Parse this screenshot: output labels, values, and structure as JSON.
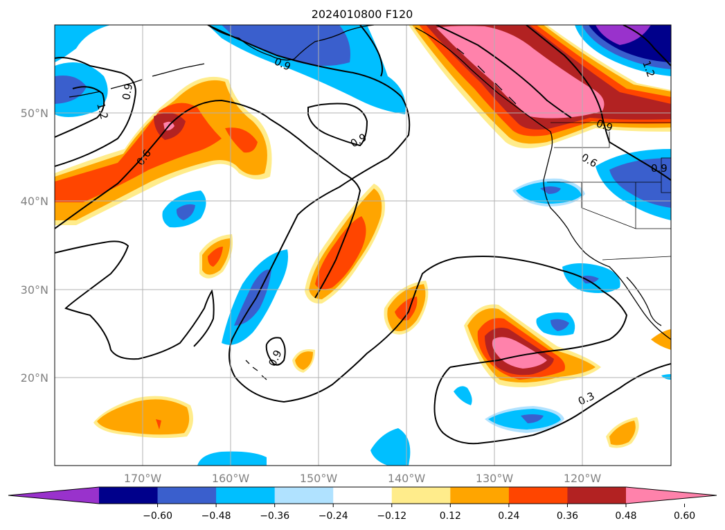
{
  "title": "2024010800 F120",
  "lat_ticks": [
    "20°N",
    "30°N",
    "40°N",
    "50°N"
  ],
  "lon_ticks": [
    "170°W",
    "160°W",
    "150°W",
    "140°W",
    "130°W",
    "120°W"
  ],
  "colorbar": {
    "ticks": [
      "−0.60",
      "−0.48",
      "−0.36",
      "−0.24",
      "−0.12",
      "0.12",
      "0.24",
      "0.36",
      "0.48",
      "0.60"
    ],
    "colors": [
      "#9932cc",
      "#00008b",
      "#3a5fcd",
      "#00bfff",
      "#b0e2ff",
      "#ffffff",
      "#ffec8b",
      "#ffa500",
      "#ff4500",
      "#b22222",
      "#ff82ab"
    ]
  },
  "contour_labels": [
    "0.9",
    "0.6",
    "0.9",
    "0.9",
    "0.9",
    "0.6",
    "0.9",
    "0.3",
    "1.2",
    "1.2",
    "0.9"
  ],
  "map": {
    "lat_range": [
      10,
      60
    ],
    "lon_range": [
      -180,
      -110
    ],
    "grid": true,
    "fill_levels": [
      -0.6,
      -0.48,
      -0.36,
      -0.24,
      -0.12,
      0.12,
      0.24,
      0.36,
      0.48,
      0.6
    ]
  }
}
